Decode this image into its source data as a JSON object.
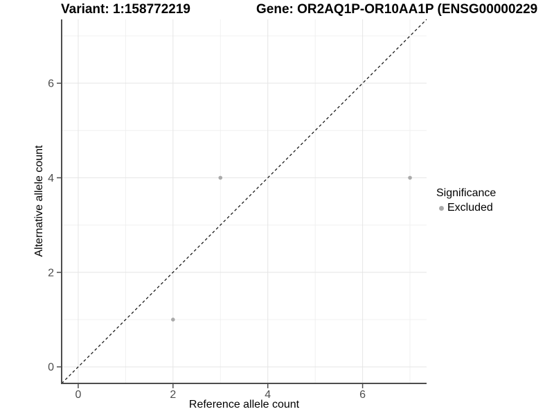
{
  "figure": {
    "title_left": "Variant: 1:158772219",
    "title_right": "Gene: OR2AQ1P-OR10AA1P (ENSG00000229"
  },
  "chart_data": {
    "type": "scatter",
    "title": "Variant: 1:158772219",
    "subtitle": "Gene: OR2AQ1P-OR10AA1P (ENSG00000229",
    "xlabel": "Reference allele count",
    "ylabel": "Alternative allele count",
    "xlim": [
      -0.35,
      7.35
    ],
    "ylim": [
      -0.35,
      7.35
    ],
    "x_ticks": [
      0,
      2,
      4,
      6
    ],
    "y_ticks": [
      0,
      2,
      4,
      6
    ],
    "x_minor_ticks": [
      1,
      3,
      5,
      7
    ],
    "y_minor_ticks": [
      1,
      3,
      5,
      7
    ],
    "grid": "on",
    "series": [
      {
        "name": "Excluded",
        "color": "#aaaaaa",
        "points": [
          [
            2,
            1
          ],
          [
            3,
            4
          ],
          [
            7,
            4
          ]
        ]
      }
    ],
    "reference_line": {
      "kind": "identity",
      "style": "dashed",
      "color": "#1a1a1a"
    },
    "legend": {
      "position": "right",
      "title": "Significance",
      "entries": [
        {
          "label": "Excluded",
          "color": "#aaaaaa"
        }
      ]
    },
    "colors": {
      "point": "#aaaaaa",
      "axis_line": "#4d4d4d",
      "tick_label": "#4d4d4d",
      "grid_major": "#e5e5e5",
      "grid_minor": "#f0f0f0",
      "background": "#ffffff"
    }
  }
}
